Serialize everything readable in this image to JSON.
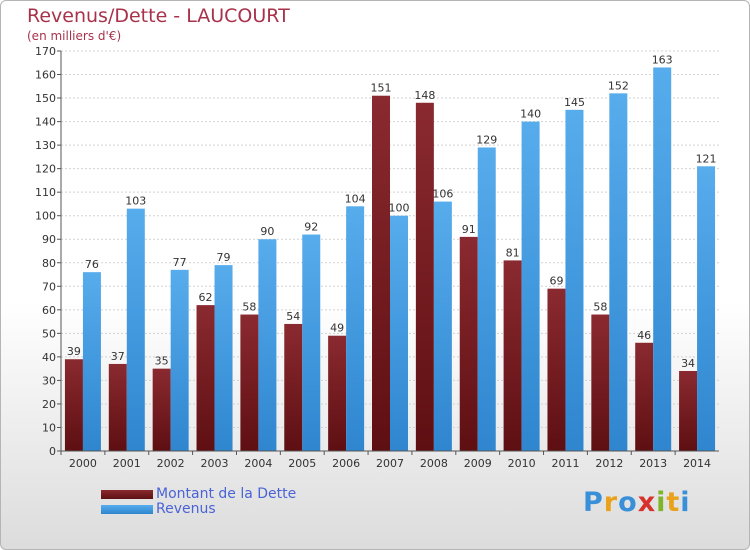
{
  "header": {
    "title": "Revenus/Dette - LAUCOURT",
    "unit": "(en milliers d'€)"
  },
  "chart_data": {
    "type": "bar",
    "categories": [
      "2000",
      "2001",
      "2002",
      "2003",
      "2004",
      "2005",
      "2006",
      "2007",
      "2008",
      "2009",
      "2010",
      "2011",
      "2012",
      "2013",
      "2014"
    ],
    "series": [
      {
        "name": "Montant de la Dette",
        "color": "#7a1f24",
        "values": [
          39,
          37,
          35,
          62,
          58,
          54,
          49,
          151,
          148,
          91,
          81,
          69,
          58,
          46,
          34
        ]
      },
      {
        "name": "Revenus",
        "color": "#4aa0e4",
        "values": [
          76,
          103,
          77,
          79,
          90,
          92,
          104,
          100,
          106,
          129,
          140,
          145,
          152,
          163,
          121
        ]
      }
    ],
    "ylim": [
      0,
      170
    ],
    "ytick_step": 10,
    "grid": true,
    "legend_position": "bottom-left",
    "xlabel": "",
    "ylabel": ""
  },
  "legend": {
    "items": [
      {
        "label": "Montant de la Dette",
        "color": "#7a1f24"
      },
      {
        "label": "Revenus",
        "color": "#4aa0e4"
      }
    ]
  },
  "brand": {
    "letters": [
      "P",
      "r",
      "o",
      "x",
      "i",
      "t",
      "i"
    ]
  }
}
